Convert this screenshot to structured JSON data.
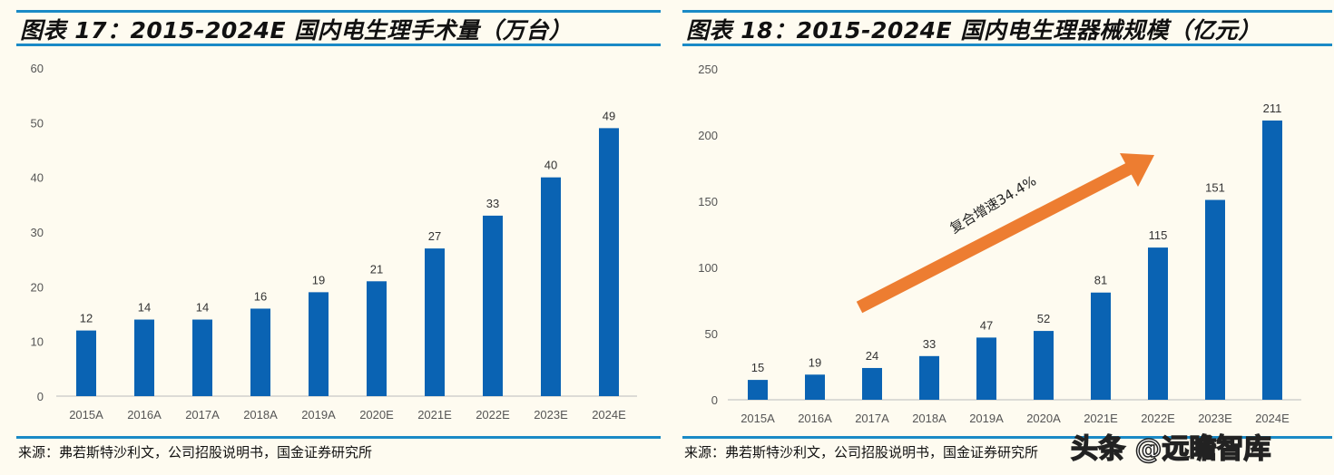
{
  "charts_meta": {
    "bar_color": "#0a63b3",
    "arrow_color": "#ed7d31",
    "rule_color": "#1a8ac6"
  },
  "left": {
    "title": "图表 17：2015-2024E 国内电生理手术量（万台）",
    "source": "来源：弗若斯特沙利文，公司招股说明书，国金证券研究所"
  },
  "right": {
    "title": "图表 18：2015-2024E 国内电生理器械规模（亿元）",
    "source": "来源：弗若斯特沙利文，公司招股说明书，国金证券研究所",
    "annotation": "复合增速34.4%"
  },
  "watermark": "头条 @远瞻智库",
  "chart_data": [
    {
      "type": "bar",
      "title": "图表 17：2015-2024E 国内电生理手术量（万台）",
      "categories": [
        "2015A",
        "2016A",
        "2017A",
        "2018A",
        "2019A",
        "2020E",
        "2021E",
        "2022E",
        "2023E",
        "2024E"
      ],
      "values": [
        12,
        14,
        14,
        16,
        19,
        21,
        27,
        33,
        40,
        49
      ],
      "ylim": [
        0,
        60
      ],
      "yticks": [
        0,
        10,
        20,
        30,
        40,
        50,
        60
      ],
      "grid": false
    },
    {
      "type": "bar",
      "title": "图表 18：2015-2024E 国内电生理器械规模（亿元）",
      "categories": [
        "2015A",
        "2016A",
        "2017A",
        "2018A",
        "2019A",
        "2020A",
        "2021E",
        "2022E",
        "2023E",
        "2024E"
      ],
      "values": [
        15,
        19,
        24,
        33,
        47,
        52,
        81,
        115,
        151,
        211
      ],
      "ylim": [
        0,
        250
      ],
      "yticks": [
        0,
        50,
        100,
        150,
        200,
        250
      ],
      "grid": false,
      "annotations": [
        "复合增速34.4%"
      ]
    }
  ]
}
